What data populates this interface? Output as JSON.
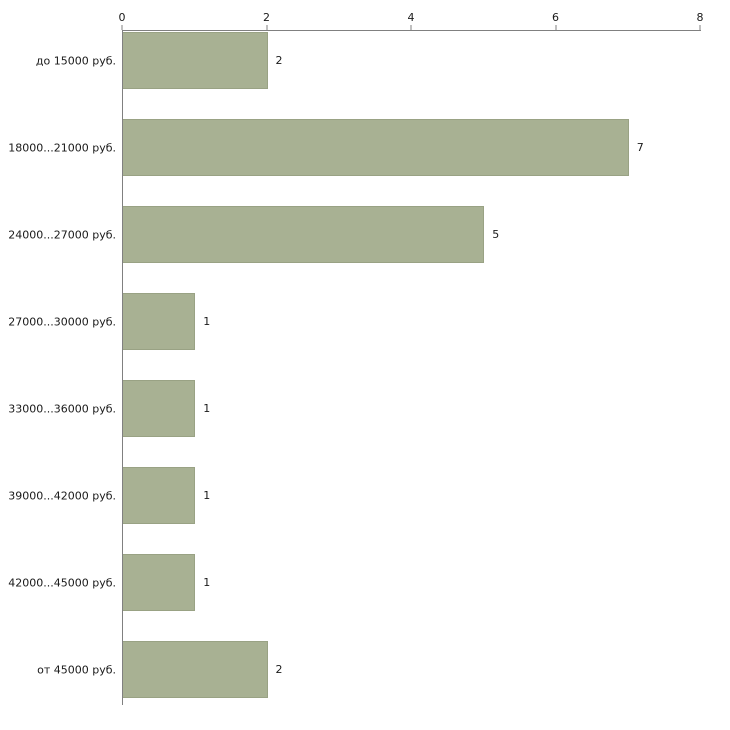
{
  "chart_data": {
    "type": "bar",
    "orientation": "horizontal",
    "title": "",
    "categories": [
      "до 15000 руб.",
      "18000...21000 руб.",
      "24000...27000 руб.",
      "27000...30000 руб.",
      "33000...36000 руб.",
      "39000...42000 руб.",
      "42000...45000 руб.",
      "от 45000 руб."
    ],
    "values": [
      2,
      7,
      5,
      1,
      1,
      1,
      1,
      2
    ],
    "value_labels": [
      "2",
      "7",
      "5",
      "1",
      "1",
      "1",
      "1",
      "2"
    ],
    "xlabel": "",
    "ylabel": "",
    "xlim": [
      0,
      8
    ],
    "x_ticks": [
      0,
      2,
      4,
      6,
      8
    ],
    "x_tick_labels": [
      "0",
      "2",
      "4",
      "6",
      "8"
    ],
    "grid": false,
    "legend": false,
    "value_labels_shown": true,
    "bar_color": "#a8b193",
    "bar_border_color": "#99a284",
    "axis_color": "#808080",
    "text_color": "#1a1a1a",
    "background_color": "#ffffff"
  }
}
